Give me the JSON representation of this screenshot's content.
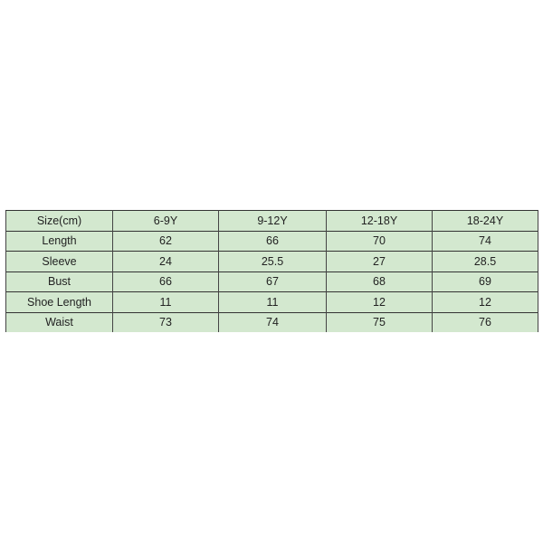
{
  "table": {
    "header": [
      "Size(cm)",
      "6-9Y",
      "9-12Y",
      "12-18Y",
      "18-24Y"
    ],
    "rows": [
      [
        "Length",
        "62",
        "66",
        "70",
        "74"
      ],
      [
        "Sleeve",
        "24",
        "25.5",
        "27",
        "28.5"
      ],
      [
        "Bust",
        "66",
        "67",
        "68",
        "69"
      ],
      [
        "Shoe Length",
        "11",
        "11",
        "12",
        "12"
      ],
      [
        "Waist",
        "73",
        "74",
        "75",
        "76"
      ]
    ],
    "background_color": "#d3e8cf",
    "border_color": "#333333"
  }
}
